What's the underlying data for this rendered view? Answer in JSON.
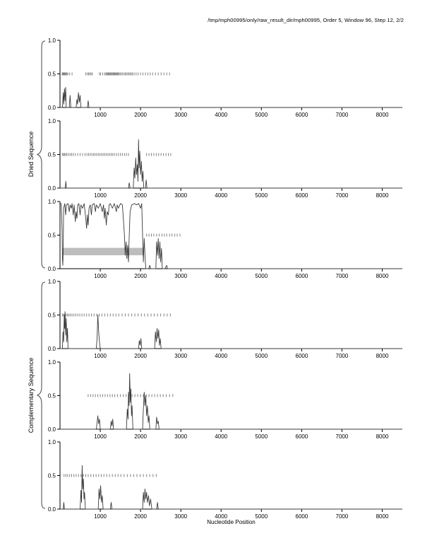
{
  "title": "/tmp/mph00995/only/raw_result_dir/mph00995, Order 5, Window 96, Step 12, 2/2",
  "chart_data": {
    "type": "line",
    "title": "/tmp/mph00995/only/raw_result_dir/mph00995, Order 5, Window 96, Step 12, 2/2",
    "xlabel": "Nucleotide Position",
    "xlim": [
      0,
      8500
    ],
    "ylim": [
      0,
      1
    ],
    "x_ticks": [
      1000,
      2000,
      3000,
      4000,
      5000,
      6000,
      7000,
      8000
    ],
    "y_ticks": [
      0.0,
      0.5,
      1.0
    ],
    "grid": false,
    "legend": "none",
    "colors": {
      "line": "#3a3a3a",
      "half_marks": "#808080",
      "band": "#bdbdbd"
    },
    "groups": [
      {
        "label": "Dried Sequence",
        "panels": [
          0,
          1,
          2
        ]
      },
      {
        "label": "Complementary Sequence",
        "panels": [
          3,
          4,
          5
        ]
      }
    ],
    "panels": [
      {
        "name": "dried-1",
        "line": [
          [
            0,
            0
          ],
          [
            60,
            0
          ],
          [
            80,
            0.22
          ],
          [
            95,
            0.05
          ],
          [
            110,
            0.28
          ],
          [
            125,
            0.1
          ],
          [
            140,
            0.3
          ],
          [
            155,
            0
          ],
          [
            230,
            0
          ],
          [
            250,
            0.18
          ],
          [
            270,
            0
          ],
          [
            400,
            0
          ],
          [
            420,
            0.12
          ],
          [
            435,
            0.05
          ],
          [
            460,
            0.22
          ],
          [
            480,
            0.08
          ],
          [
            500,
            0.18
          ],
          [
            520,
            0
          ],
          [
            680,
            0
          ],
          [
            700,
            0.1
          ],
          [
            720,
            0
          ],
          [
            8500,
            0
          ]
        ],
        "half_marks": [
          55,
          70,
          85,
          100,
          115,
          130,
          150,
          170,
          195,
          240,
          300,
          640,
          680,
          710,
          740,
          770,
          800,
          980,
          1010,
          1060,
          1110,
          1140,
          1160,
          1180,
          1200,
          1220,
          1240,
          1260,
          1280,
          1300,
          1320,
          1340,
          1360,
          1380,
          1400,
          1420,
          1440,
          1460,
          1490,
          1520,
          1550,
          1590,
          1620,
          1650,
          1680,
          1710,
          1740,
          1770,
          1800,
          1840,
          1890,
          1940,
          2000,
          2060,
          2120,
          2180,
          2240,
          2300,
          2370,
          2440,
          2510,
          2580,
          2650,
          2720
        ]
      },
      {
        "name": "dried-2",
        "line": [
          [
            0,
            0
          ],
          [
            130,
            0
          ],
          [
            145,
            0.1
          ],
          [
            160,
            0
          ],
          [
            1700,
            0
          ],
          [
            1720,
            0.08
          ],
          [
            1740,
            0
          ],
          [
            1820,
            0
          ],
          [
            1840,
            0.3
          ],
          [
            1860,
            0.15
          ],
          [
            1880,
            0.45
          ],
          [
            1900,
            0.2
          ],
          [
            1920,
            0.35
          ],
          [
            1935,
            0.1
          ],
          [
            1950,
            0.72
          ],
          [
            1965,
            0.3
          ],
          [
            1980,
            0.55
          ],
          [
            2000,
            0.2
          ],
          [
            2020,
            0.4
          ],
          [
            2040,
            0.1
          ],
          [
            2060,
            0.25
          ],
          [
            2080,
            0
          ],
          [
            2120,
            0
          ],
          [
            2140,
            0.12
          ],
          [
            2160,
            0
          ],
          [
            8500,
            0
          ]
        ],
        "half_marks": [
          60,
          85,
          110,
          140,
          170,
          210,
          250,
          290,
          330,
          380,
          440,
          500,
          560,
          620,
          670,
          710,
          750,
          790,
          830,
          870,
          910,
          950,
          990,
          1030,
          1070,
          1110,
          1150,
          1190,
          1230,
          1270,
          1310,
          1350,
          1400,
          1450,
          1500,
          1550,
          1600,
          1650,
          1700,
          2150,
          2210,
          2270,
          2330,
          2390,
          2450,
          2510,
          2570,
          2630,
          2690,
          2750
        ]
      },
      {
        "name": "dried-3",
        "band": {
          "x0": 50,
          "x1": 2080,
          "y0": 0.2,
          "y1": 0.31
        },
        "line": [
          [
            0,
            0.97
          ],
          [
            30,
            0.97
          ],
          [
            50,
            0.6
          ],
          [
            60,
            0.15
          ],
          [
            70,
            0.05
          ],
          [
            80,
            0.3
          ],
          [
            90,
            0.9
          ],
          [
            120,
            0.97
          ],
          [
            140,
            0.8
          ],
          [
            160,
            0.95
          ],
          [
            200,
            0.97
          ],
          [
            230,
            0.85
          ],
          [
            250,
            0.95
          ],
          [
            280,
            0.9
          ],
          [
            300,
            0.97
          ],
          [
            330,
            0.8
          ],
          [
            350,
            0.95
          ],
          [
            380,
            0.7
          ],
          [
            400,
            0.85
          ],
          [
            420,
            0.75
          ],
          [
            440,
            0.95
          ],
          [
            470,
            0.97
          ],
          [
            500,
            0.8
          ],
          [
            520,
            0.95
          ],
          [
            560,
            0.9
          ],
          [
            600,
            0.97
          ],
          [
            640,
            0.75
          ],
          [
            660,
            0.6
          ],
          [
            680,
            0.8
          ],
          [
            700,
            0.65
          ],
          [
            720,
            0.9
          ],
          [
            750,
            0.95
          ],
          [
            780,
            0.8
          ],
          [
            800,
            0.95
          ],
          [
            850,
            0.97
          ],
          [
            880,
            0.85
          ],
          [
            900,
            0.95
          ],
          [
            950,
            0.9
          ],
          [
            1000,
            0.97
          ],
          [
            1050,
            0.85
          ],
          [
            1080,
            0.95
          ],
          [
            1100,
            0.75
          ],
          [
            1120,
            0.9
          ],
          [
            1150,
            0.65
          ],
          [
            1170,
            0.85
          ],
          [
            1200,
            0.8
          ],
          [
            1220,
            0.95
          ],
          [
            1250,
            0.97
          ],
          [
            1300,
            0.9
          ],
          [
            1350,
            0.97
          ],
          [
            1400,
            0.85
          ],
          [
            1420,
            0.95
          ],
          [
            1450,
            0.9
          ],
          [
            1500,
            0.97
          ],
          [
            1550,
            0.95
          ],
          [
            1600,
            0.5
          ],
          [
            1620,
            0.2
          ],
          [
            1640,
            0.4
          ],
          [
            1660,
            0.15
          ],
          [
            1680,
            0.35
          ],
          [
            1700,
            0.1
          ],
          [
            1720,
            0.5
          ],
          [
            1740,
            0.85
          ],
          [
            1780,
            0.95
          ],
          [
            1850,
            0.97
          ],
          [
            1900,
            0.95
          ],
          [
            1950,
            0.97
          ],
          [
            2000,
            0.9
          ],
          [
            2030,
            0.97
          ],
          [
            2050,
            0.5
          ],
          [
            2070,
            0.1
          ],
          [
            2090,
            0.45
          ],
          [
            2110,
            0.2
          ],
          [
            2130,
            0
          ],
          [
            2200,
            0
          ],
          [
            2230,
            0.05
          ],
          [
            2250,
            0
          ],
          [
            2380,
            0
          ],
          [
            2400,
            0.4
          ],
          [
            2420,
            0.2
          ],
          [
            2440,
            0.45
          ],
          [
            2460,
            0.15
          ],
          [
            2480,
            0.4
          ],
          [
            2500,
            0.1
          ],
          [
            2520,
            0.3
          ],
          [
            2540,
            0
          ],
          [
            2600,
            0
          ],
          [
            2650,
            0.05
          ],
          [
            2670,
            0
          ],
          [
            8500,
            0
          ]
        ],
        "half_marks": [
          2150,
          2210,
          2270,
          2330,
          2400,
          2460,
          2530,
          2590,
          2650,
          2720,
          2780,
          2850,
          2910,
          2980
        ]
      },
      {
        "name": "complementary-1",
        "line": [
          [
            0,
            0
          ],
          [
            60,
            0
          ],
          [
            75,
            0.25
          ],
          [
            90,
            0.1
          ],
          [
            105,
            0.5
          ],
          [
            115,
            0.3
          ],
          [
            125,
            0.55
          ],
          [
            140,
            0.2
          ],
          [
            155,
            0.45
          ],
          [
            170,
            0.1
          ],
          [
            185,
            0.3
          ],
          [
            200,
            0
          ],
          [
            900,
            0
          ],
          [
            920,
            0.15
          ],
          [
            940,
            0.5
          ],
          [
            960,
            0.25
          ],
          [
            980,
            0.1
          ],
          [
            1000,
            0
          ],
          [
            1950,
            0
          ],
          [
            1970,
            0.12
          ],
          [
            1990,
            0.05
          ],
          [
            2010,
            0.15
          ],
          [
            2030,
            0
          ],
          [
            2350,
            0
          ],
          [
            2370,
            0.25
          ],
          [
            2390,
            0.1
          ],
          [
            2410,
            0.3
          ],
          [
            2430,
            0.15
          ],
          [
            2450,
            0.28
          ],
          [
            2470,
            0.05
          ],
          [
            2490,
            0.15
          ],
          [
            2510,
            0
          ],
          [
            8500,
            0
          ]
        ],
        "half_marks": [
          60,
          90,
          120,
          150,
          185,
          220,
          260,
          300,
          345,
          390,
          440,
          490,
          545,
          600,
          660,
          720,
          780,
          845,
          910,
          975,
          1040,
          1110,
          1180,
          1250,
          1320,
          1390,
          1460,
          1540,
          1620,
          1700,
          1780,
          1860,
          1940,
          2020,
          2100,
          2180,
          2260,
          2340,
          2420,
          2500,
          2580,
          2660,
          2740
        ]
      },
      {
        "name": "complementary-2",
        "line": [
          [
            0,
            0
          ],
          [
            900,
            0
          ],
          [
            920,
            0.1
          ],
          [
            940,
            0.2
          ],
          [
            960,
            0.08
          ],
          [
            980,
            0.15
          ],
          [
            1000,
            0
          ],
          [
            1250,
            0
          ],
          [
            1270,
            0.12
          ],
          [
            1290,
            0.05
          ],
          [
            1310,
            0.15
          ],
          [
            1330,
            0
          ],
          [
            1650,
            0
          ],
          [
            1670,
            0.3
          ],
          [
            1690,
            0.15
          ],
          [
            1700,
            0.55
          ],
          [
            1715,
            0.35
          ],
          [
            1730,
            0.83
          ],
          [
            1745,
            0.4
          ],
          [
            1760,
            0.6
          ],
          [
            1775,
            0.2
          ],
          [
            1790,
            0.35
          ],
          [
            1810,
            0
          ],
          [
            2050,
            0
          ],
          [
            2070,
            0.3
          ],
          [
            2090,
            0.55
          ],
          [
            2110,
            0.35
          ],
          [
            2130,
            0.5
          ],
          [
            2150,
            0.2
          ],
          [
            2170,
            0.35
          ],
          [
            2190,
            0.1
          ],
          [
            2210,
            0.2
          ],
          [
            2230,
            0
          ],
          [
            2380,
            0
          ],
          [
            2400,
            0.18
          ],
          [
            2420,
            0.08
          ],
          [
            2440,
            0.12
          ],
          [
            2460,
            0
          ],
          [
            8500,
            0
          ]
        ],
        "half_marks": [
          700,
          760,
          820,
          880,
          940,
          1000,
          1060,
          1120,
          1180,
          1240,
          1300,
          1360,
          1430,
          1500,
          1570,
          1640,
          1710,
          1790,
          1860,
          1930,
          2000,
          2070,
          2140,
          2210,
          2280,
          2350,
          2420,
          2490,
          2560,
          2640,
          2720,
          2800
        ]
      },
      {
        "name": "complementary-3",
        "line": [
          [
            0,
            0
          ],
          [
            80,
            0
          ],
          [
            95,
            0.1
          ],
          [
            110,
            0
          ],
          [
            500,
            0
          ],
          [
            520,
            0.28
          ],
          [
            535,
            0.1
          ],
          [
            550,
            0.65
          ],
          [
            565,
            0.3
          ],
          [
            580,
            0.45
          ],
          [
            595,
            0.15
          ],
          [
            610,
            0.25
          ],
          [
            630,
            0
          ],
          [
            950,
            0
          ],
          [
            970,
            0.3
          ],
          [
            990,
            0.15
          ],
          [
            1010,
            0.35
          ],
          [
            1030,
            0.1
          ],
          [
            1050,
            0.2
          ],
          [
            1070,
            0
          ],
          [
            1250,
            0
          ],
          [
            1270,
            0.1
          ],
          [
            1290,
            0
          ],
          [
            2050,
            0
          ],
          [
            2070,
            0.25
          ],
          [
            2090,
            0.1
          ],
          [
            2110,
            0.3
          ],
          [
            2130,
            0.15
          ],
          [
            2150,
            0.25
          ],
          [
            2170,
            0.1
          ],
          [
            2200,
            0.2
          ],
          [
            2220,
            0.05
          ],
          [
            2250,
            0.15
          ],
          [
            2280,
            0
          ],
          [
            2400,
            0
          ],
          [
            2420,
            0.1
          ],
          [
            2440,
            0
          ],
          [
            8500,
            0
          ]
        ],
        "half_marks": [
          100,
          145,
          190,
          240,
          290,
          345,
          400,
          460,
          520,
          580,
          640,
          700,
          765,
          830,
          895,
          960,
          1025,
          1090,
          1160,
          1230,
          1300,
          1370,
          1440,
          1510,
          1590,
          1670,
          1750,
          1830,
          1910,
          1990,
          2070,
          2150,
          2230,
          2310,
          2390
        ]
      }
    ]
  }
}
